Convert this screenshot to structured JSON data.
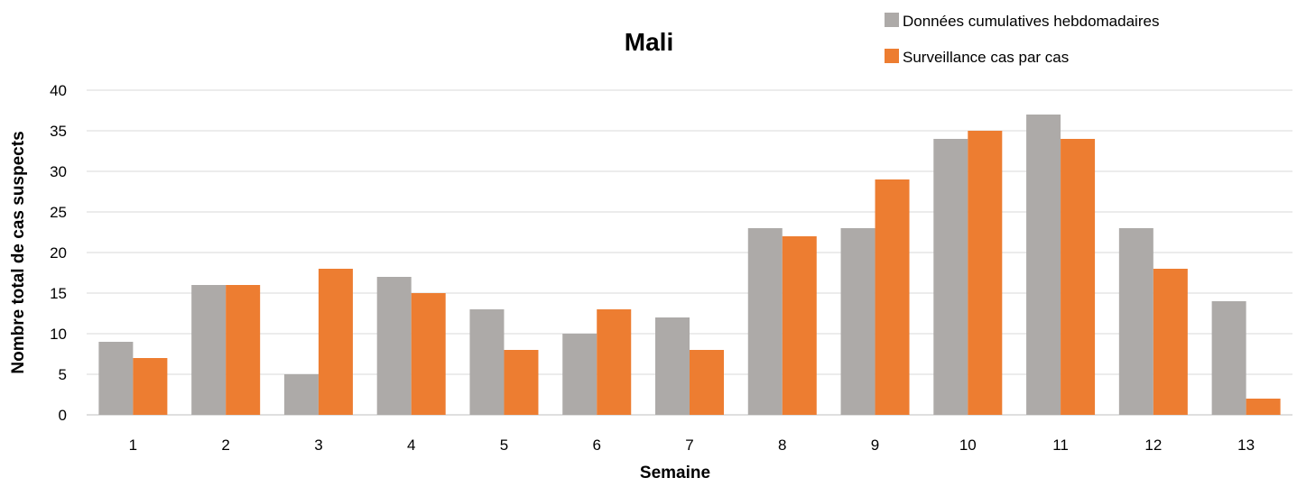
{
  "chart_data": {
    "type": "bar",
    "title": "Mali",
    "xlabel": "Semaine",
    "ylabel": "Nombre total de cas suspects",
    "categories": [
      "1",
      "2",
      "3",
      "4",
      "5",
      "6",
      "7",
      "8",
      "9",
      "10",
      "11",
      "12",
      "13"
    ],
    "ylim": [
      0,
      40
    ],
    "yticks": [
      0,
      5,
      10,
      15,
      20,
      25,
      30,
      35,
      40
    ],
    "grid": true,
    "legend_position": "top-right",
    "series": [
      {
        "name": "Données cumulatives hebdomadaires",
        "color": "#ADAAA8",
        "values": [
          9,
          16,
          5,
          17,
          13,
          10,
          12,
          23,
          23,
          34,
          37,
          23,
          14
        ]
      },
      {
        "name": "Surveillance cas par cas",
        "color": "#ED7D31",
        "values": [
          7,
          16,
          18,
          15,
          8,
          13,
          8,
          22,
          29,
          35,
          34,
          18,
          2
        ]
      }
    ]
  }
}
